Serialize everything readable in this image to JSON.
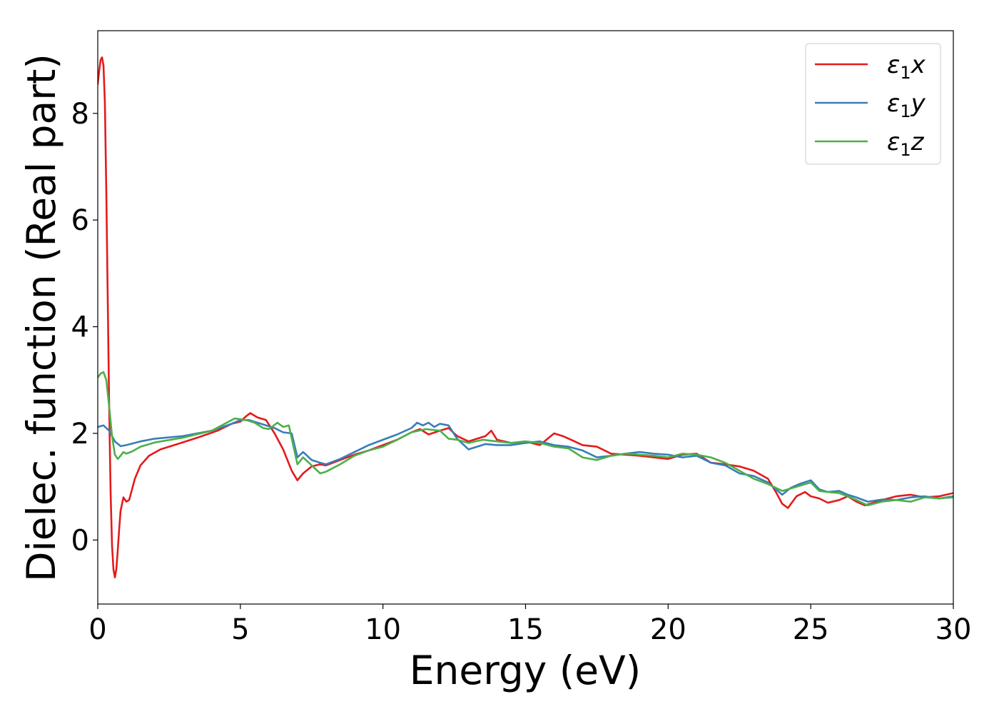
{
  "chart_data": {
    "type": "line",
    "title": "",
    "xlabel": "Energy (eV)",
    "ylabel": "Dielec. function (Real part)",
    "xlim": [
      0,
      30
    ],
    "ylim": [
      -1.2,
      9.55
    ],
    "xticks": [
      0,
      5,
      10,
      15,
      20,
      25,
      30
    ],
    "yticks": [
      0,
      2,
      4,
      6,
      8
    ],
    "grid": false,
    "legend_position": "top-right",
    "series": [
      {
        "name": "ε₁x",
        "legend_main": "ε",
        "legend_sub": "1",
        "legend_var": "x",
        "color": "#e41a1c",
        "x": [
          0,
          0.05,
          0.1,
          0.15,
          0.2,
          0.25,
          0.3,
          0.35,
          0.4,
          0.45,
          0.5,
          0.55,
          0.6,
          0.65,
          0.7,
          0.75,
          0.8,
          0.9,
          1.0,
          1.1,
          1.2,
          1.3,
          1.5,
          1.8,
          2.2,
          2.8,
          3.5,
          4.2,
          4.7,
          5.0,
          5.2,
          5.35,
          5.6,
          5.9,
          6.2,
          6.5,
          6.8,
          7.0,
          7.2,
          7.5,
          7.8,
          8.0,
          8.5,
          9.0,
          9.5,
          10.0,
          10.5,
          11.0,
          11.3,
          11.6,
          12.0,
          12.3,
          12.6,
          13.0,
          13.3,
          13.6,
          13.8,
          14.0,
          14.5,
          15.0,
          15.5,
          16.0,
          16.3,
          16.6,
          17.0,
          17.5,
          18.0,
          18.5,
          19.0,
          19.5,
          20.0,
          20.5,
          21.0,
          21.5,
          22.0,
          22.5,
          23.0,
          23.5,
          23.8,
          24.0,
          24.2,
          24.5,
          24.8,
          25.0,
          25.3,
          25.6,
          26.0,
          26.3,
          26.6,
          26.9,
          27.2,
          27.5,
          28.0,
          28.5,
          29.0,
          29.5,
          30.0
        ],
        "y": [
          8.55,
          8.8,
          9.0,
          9.05,
          8.9,
          8.2,
          6.5,
          4.5,
          2.5,
          0.9,
          -0.1,
          -0.55,
          -0.7,
          -0.55,
          -0.2,
          0.2,
          0.55,
          0.8,
          0.72,
          0.75,
          0.95,
          1.15,
          1.4,
          1.58,
          1.7,
          1.8,
          1.92,
          2.05,
          2.18,
          2.22,
          2.32,
          2.38,
          2.3,
          2.25,
          2.0,
          1.7,
          1.3,
          1.12,
          1.25,
          1.38,
          1.42,
          1.4,
          1.5,
          1.6,
          1.68,
          1.78,
          1.88,
          2.02,
          2.08,
          1.98,
          2.05,
          2.1,
          1.95,
          1.85,
          1.9,
          1.95,
          2.05,
          1.88,
          1.82,
          1.85,
          1.78,
          2.0,
          1.95,
          1.88,
          1.78,
          1.75,
          1.62,
          1.6,
          1.58,
          1.55,
          1.52,
          1.6,
          1.62,
          1.45,
          1.42,
          1.38,
          1.3,
          1.15,
          0.88,
          0.68,
          0.6,
          0.82,
          0.9,
          0.82,
          0.78,
          0.7,
          0.75,
          0.82,
          0.72,
          0.65,
          0.7,
          0.75,
          0.82,
          0.85,
          0.8,
          0.82,
          0.88
        ]
      },
      {
        "name": "ε₁y",
        "legend_main": "ε",
        "legend_sub": "1",
        "legend_var": "y",
        "color": "#377eb8",
        "x": [
          0,
          0.2,
          0.4,
          0.6,
          0.8,
          1.0,
          1.5,
          2.0,
          3.0,
          4.0,
          4.7,
          5.0,
          5.3,
          5.6,
          5.9,
          6.2,
          6.5,
          6.8,
          7.0,
          7.2,
          7.5,
          7.8,
          8.0,
          8.5,
          9.0,
          9.5,
          10.0,
          10.5,
          11.0,
          11.2,
          11.4,
          11.6,
          11.8,
          12.0,
          12.3,
          12.6,
          13.0,
          13.3,
          13.6,
          14.0,
          14.5,
          15.0,
          15.5,
          16.0,
          16.5,
          17.0,
          17.5,
          18.0,
          18.5,
          19.0,
          19.5,
          20.0,
          20.5,
          21.0,
          21.5,
          22.0,
          22.5,
          23.0,
          23.5,
          24.0,
          24.3,
          24.6,
          25.0,
          25.3,
          25.6,
          26.0,
          26.3,
          26.6,
          27.0,
          27.5,
          28.0,
          28.5,
          29.0,
          29.5,
          30.0
        ],
        "y": [
          2.12,
          2.15,
          2.05,
          1.85,
          1.76,
          1.78,
          1.85,
          1.9,
          1.95,
          2.05,
          2.18,
          2.25,
          2.25,
          2.2,
          2.15,
          2.1,
          2.02,
          2.0,
          1.55,
          1.65,
          1.5,
          1.45,
          1.42,
          1.52,
          1.65,
          1.78,
          1.88,
          1.98,
          2.1,
          2.2,
          2.15,
          2.2,
          2.12,
          2.18,
          2.15,
          1.9,
          1.7,
          1.75,
          1.8,
          1.78,
          1.78,
          1.82,
          1.85,
          1.78,
          1.75,
          1.68,
          1.55,
          1.58,
          1.62,
          1.65,
          1.62,
          1.6,
          1.55,
          1.58,
          1.45,
          1.4,
          1.25,
          1.2,
          1.08,
          0.85,
          0.98,
          1.05,
          1.12,
          0.95,
          0.9,
          0.92,
          0.85,
          0.8,
          0.72,
          0.76,
          0.75,
          0.8,
          0.82,
          0.78,
          0.82
        ]
      },
      {
        "name": "ε₁z",
        "legend_main": "ε",
        "legend_sub": "1",
        "legend_var": "z",
        "color": "#4daf4a",
        "x": [
          0,
          0.1,
          0.2,
          0.3,
          0.4,
          0.5,
          0.6,
          0.7,
          0.8,
          0.9,
          1.0,
          1.2,
          1.5,
          2.0,
          3.0,
          4.0,
          4.8,
          5.2,
          5.5,
          5.8,
          6.0,
          6.3,
          6.5,
          6.7,
          7.0,
          7.2,
          7.5,
          7.8,
          8.0,
          8.5,
          9.0,
          9.5,
          10.0,
          10.5,
          11.0,
          11.5,
          12.0,
          12.3,
          12.6,
          13.0,
          13.5,
          14.0,
          14.5,
          15.0,
          15.5,
          16.0,
          16.5,
          17.0,
          17.5,
          18.0,
          18.5,
          19.0,
          19.5,
          20.0,
          20.5,
          21.0,
          21.5,
          22.0,
          22.5,
          23.0,
          23.5,
          24.0,
          24.5,
          25.0,
          25.3,
          25.6,
          26.0,
          26.3,
          26.6,
          27.0,
          27.5,
          28.0,
          28.5,
          29.0,
          29.5,
          30.0
        ],
        "y": [
          3.05,
          3.12,
          3.15,
          3.0,
          2.5,
          1.95,
          1.6,
          1.52,
          1.58,
          1.65,
          1.62,
          1.66,
          1.75,
          1.83,
          1.92,
          2.05,
          2.28,
          2.25,
          2.2,
          2.1,
          2.08,
          2.2,
          2.12,
          2.15,
          1.42,
          1.55,
          1.4,
          1.25,
          1.28,
          1.42,
          1.58,
          1.68,
          1.75,
          1.88,
          2.02,
          2.08,
          2.05,
          1.9,
          1.88,
          1.82,
          1.88,
          1.85,
          1.82,
          1.85,
          1.82,
          1.75,
          1.72,
          1.55,
          1.5,
          1.58,
          1.62,
          1.6,
          1.58,
          1.55,
          1.62,
          1.6,
          1.55,
          1.45,
          1.3,
          1.15,
          1.05,
          0.92,
          1.0,
          1.08,
          0.92,
          0.9,
          0.88,
          0.82,
          0.75,
          0.65,
          0.72,
          0.75,
          0.72,
          0.8,
          0.78,
          0.8
        ]
      }
    ]
  }
}
